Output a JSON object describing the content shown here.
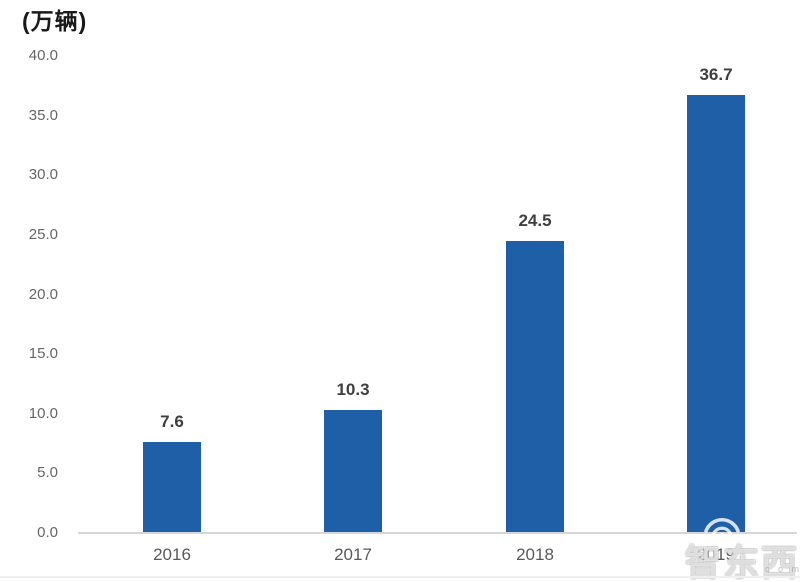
{
  "chart_data": {
    "type": "bar",
    "title": "",
    "unit_label": "(万辆)",
    "xlabel": "",
    "ylabel": "(万辆)",
    "categories": [
      "2016",
      "2017",
      "2018",
      "2019"
    ],
    "values": [
      7.6,
      10.3,
      24.5,
      36.7
    ],
    "value_labels": [
      "7.6",
      "10.3",
      "24.5",
      "36.7"
    ],
    "ylim": [
      0,
      40
    ],
    "ytick_step": 5,
    "ytick_labels": [
      "0.0",
      "5.0",
      "10.0",
      "15.0",
      "20.0",
      "25.0",
      "30.0",
      "35.0",
      "40.0"
    ],
    "grid": false,
    "legend_position": "none",
    "bar_color": "#1f5fa8",
    "value_label_color": "#3f3f3f",
    "axis_text_color": "#666666",
    "axis_line_color": "#d6d6d6"
  },
  "watermark": {
    "text": "智东西",
    "suffix": ". c o m",
    "icon": "wifi-arc-icon"
  }
}
